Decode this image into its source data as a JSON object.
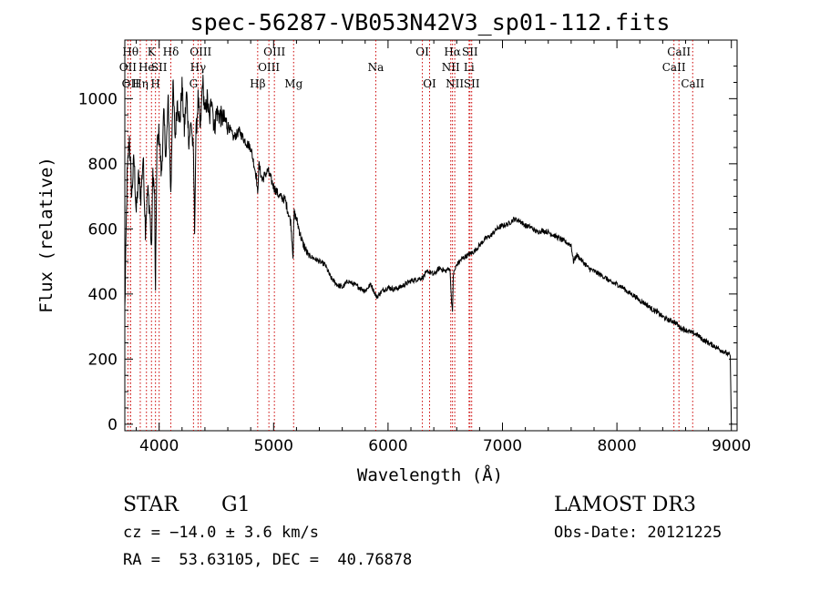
{
  "chart_data": {
    "type": "line",
    "title": "spec-56287-VB053N42V3_sp01-112.fits",
    "xlabel": "Wavelength (Å)",
    "ylabel": "Flux (relative)",
    "xlim": [
      3700,
      9050
    ],
    "ylim": [
      -20,
      1180
    ],
    "xticks": [
      4000,
      5000,
      6000,
      7000,
      8000,
      9000
    ],
    "xtick_labels": [
      "4000",
      "5000",
      "6000",
      "7000",
      "8000",
      "9000"
    ],
    "yticks": [
      0,
      200,
      400,
      600,
      800,
      1000
    ],
    "ytick_labels": [
      "0",
      "200",
      "400",
      "600",
      "800",
      "1000"
    ],
    "line_color": "#000000",
    "marker_color": "#cc0000",
    "spectrum": {
      "x": [
        3700,
        3720,
        3740,
        3760,
        3780,
        3800,
        3820,
        3840,
        3860,
        3880,
        3900,
        3920,
        3933,
        3945,
        3960,
        3968,
        3980,
        4000,
        4020,
        4040,
        4060,
        4080,
        4102,
        4120,
        4140,
        4160,
        4180,
        4200,
        4220,
        4240,
        4260,
        4280,
        4300,
        4310,
        4320,
        4340,
        4360,
        4380,
        4400,
        4420,
        4440,
        4460,
        4480,
        4500,
        4550,
        4600,
        4650,
        4700,
        4750,
        4800,
        4850,
        4861,
        4870,
        4900,
        4950,
        5000,
        5050,
        5100,
        5150,
        5170,
        5175,
        5180,
        5200,
        5250,
        5300,
        5350,
        5400,
        5450,
        5500,
        5550,
        5600,
        5650,
        5700,
        5750,
        5800,
        5850,
        5900,
        5950,
        6000,
        6050,
        6100,
        6150,
        6200,
        6250,
        6300,
        6350,
        6400,
        6450,
        6500,
        6540,
        6555,
        6563,
        6570,
        6600,
        6650,
        6700,
        6750,
        6800,
        6850,
        6900,
        6950,
        7000,
        7050,
        7100,
        7150,
        7200,
        7250,
        7300,
        7350,
        7400,
        7450,
        7500,
        7550,
        7600,
        7620,
        7650,
        7700,
        7750,
        7800,
        7850,
        7900,
        7950,
        8000,
        8050,
        8100,
        8150,
        8200,
        8250,
        8300,
        8350,
        8400,
        8450,
        8498,
        8520,
        8542,
        8560,
        8600,
        8662,
        8700,
        8750,
        8800,
        8850,
        8900,
        8950,
        8990,
        9000
      ],
      "y": [
        350,
        760,
        880,
        700,
        820,
        650,
        760,
        700,
        820,
        600,
        720,
        650,
        520,
        780,
        700,
        390,
        850,
        900,
        760,
        950,
        820,
        1000,
        700,
        1050,
        880,
        1000,
        920,
        1040,
        900,
        1020,
        870,
        930,
        820,
        600,
        870,
        1000,
        900,
        1060,
        950,
        1000,
        930,
        1020,
        900,
        960,
        940,
        920,
        880,
        900,
        870,
        850,
        760,
        700,
        800,
        750,
        780,
        730,
        700,
        690,
        620,
        520,
        600,
        650,
        630,
        560,
        520,
        510,
        500,
        490,
        450,
        430,
        420,
        440,
        430,
        420,
        410,
        430,
        390,
        410,
        420,
        415,
        420,
        430,
        440,
        445,
        450,
        470,
        460,
        480,
        470,
        480,
        380,
        340,
        460,
        490,
        510,
        520,
        530,
        550,
        570,
        580,
        600,
        610,
        615,
        630,
        625,
        610,
        605,
        590,
        595,
        590,
        580,
        570,
        560,
        550,
        500,
        520,
        500,
        480,
        470,
        460,
        450,
        435,
        430,
        420,
        405,
        395,
        380,
        370,
        355,
        345,
        330,
        320,
        315,
        310,
        300,
        295,
        290,
        280,
        275,
        260,
        250,
        240,
        230,
        220,
        210,
        0
      ]
    },
    "lines": [
      {
        "x": 3750,
        "label": "Hθ",
        "row": 1
      },
      {
        "x": 3727,
        "label": "OII",
        "row": 2
      },
      {
        "x": 3750,
        "label": "OII",
        "row": 3
      },
      {
        "x": 3835,
        "label": "Hη",
        "row": 3
      },
      {
        "x": 3889,
        "label": "He",
        "row": 2
      },
      {
        "x": 3933,
        "label": "K",
        "row": 1
      },
      {
        "x": 3968,
        "label": "H",
        "row": 3
      },
      {
        "x": 4000,
        "label": "SII",
        "row": 2
      },
      {
        "x": 4102,
        "label": "Hδ",
        "row": 1
      },
      {
        "x": 4300,
        "label": "G",
        "row": 3
      },
      {
        "x": 4340,
        "label": "Hγ",
        "row": 2
      },
      {
        "x": 4363,
        "label": "OIII",
        "row": 1
      },
      {
        "x": 4861,
        "label": "Hβ",
        "row": 3
      },
      {
        "x": 4959,
        "label": "OIII",
        "row": 2
      },
      {
        "x": 5007,
        "label": "OIII",
        "row": 1
      },
      {
        "x": 5175,
        "label": "Mg",
        "row": 3
      },
      {
        "x": 5893,
        "label": "Na",
        "row": 2
      },
      {
        "x": 6300,
        "label": "OI",
        "row": 1
      },
      {
        "x": 6363,
        "label": "OI",
        "row": 3
      },
      {
        "x": 6548,
        "label": "NII",
        "row": 2
      },
      {
        "x": 6563,
        "label": "Hα",
        "row": 1
      },
      {
        "x": 6583,
        "label": "NII",
        "row": 3
      },
      {
        "x": 6708,
        "label": "Li",
        "row": 2
      },
      {
        "x": 6716,
        "label": "SII",
        "row": 1
      },
      {
        "x": 6731,
        "label": "SII",
        "row": 3
      },
      {
        "x": 8498,
        "label": "CaII",
        "row": 2
      },
      {
        "x": 8542,
        "label": "CaII",
        "row": 1
      },
      {
        "x": 8662,
        "label": "CaII",
        "row": 3
      }
    ]
  },
  "info": {
    "class": "STAR",
    "subclass": "G1",
    "survey": "LAMOST DR3",
    "cz": "cz = −14.0 ± 3.6 km/s",
    "obs_date": "Obs-Date: 20121225",
    "coords": "RA =  53.63105, DEC =  40.76878"
  }
}
